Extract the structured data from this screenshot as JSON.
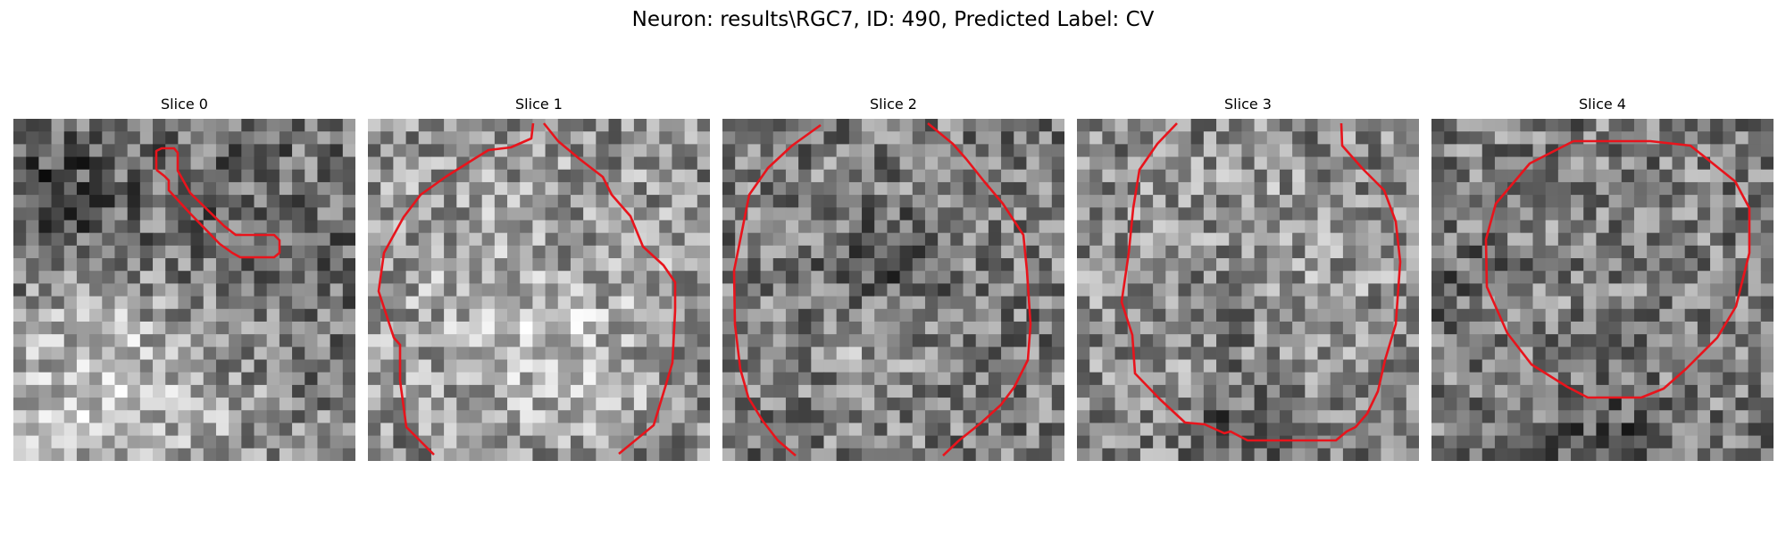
{
  "figure": {
    "title": "Neuron: results\\RGC7, ID: 490, Predicted Label: CV",
    "contour_color": "#e8141c",
    "colormap": "gray"
  },
  "panels": [
    {
      "title": "Slice 0",
      "seed": 11,
      "blobs": [
        [
          0.28,
          0.78,
          0.3,
          0.9
        ],
        [
          0.08,
          0.25,
          0.18,
          -0.7
        ],
        [
          0.6,
          0.4,
          0.25,
          -0.35
        ]
      ]
    },
    {
      "title": "Slice 1",
      "seed": 23,
      "blobs": [
        [
          0.45,
          0.5,
          0.45,
          0.55
        ],
        [
          0.55,
          0.68,
          0.18,
          0.35
        ],
        [
          0.55,
          0.4,
          0.15,
          -0.2
        ]
      ]
    },
    {
      "title": "Slice 2",
      "seed": 37,
      "blobs": [
        [
          0.5,
          0.5,
          0.5,
          0.05
        ],
        [
          0.48,
          0.45,
          0.12,
          -0.45
        ],
        [
          0.45,
          0.68,
          0.12,
          0.4
        ]
      ]
    },
    {
      "title": "Slice 3",
      "seed": 53,
      "blobs": [
        [
          0.5,
          0.52,
          0.38,
          0.45
        ],
        [
          0.45,
          0.55,
          0.12,
          -0.45
        ],
        [
          0.5,
          0.92,
          0.12,
          -0.7
        ]
      ]
    },
    {
      "title": "Slice 4",
      "seed": 71,
      "blobs": [
        [
          0.5,
          0.5,
          0.32,
          0.12
        ],
        [
          0.5,
          0.95,
          0.15,
          -0.5
        ],
        [
          0.05,
          0.5,
          0.12,
          -0.3
        ]
      ]
    }
  ]
}
